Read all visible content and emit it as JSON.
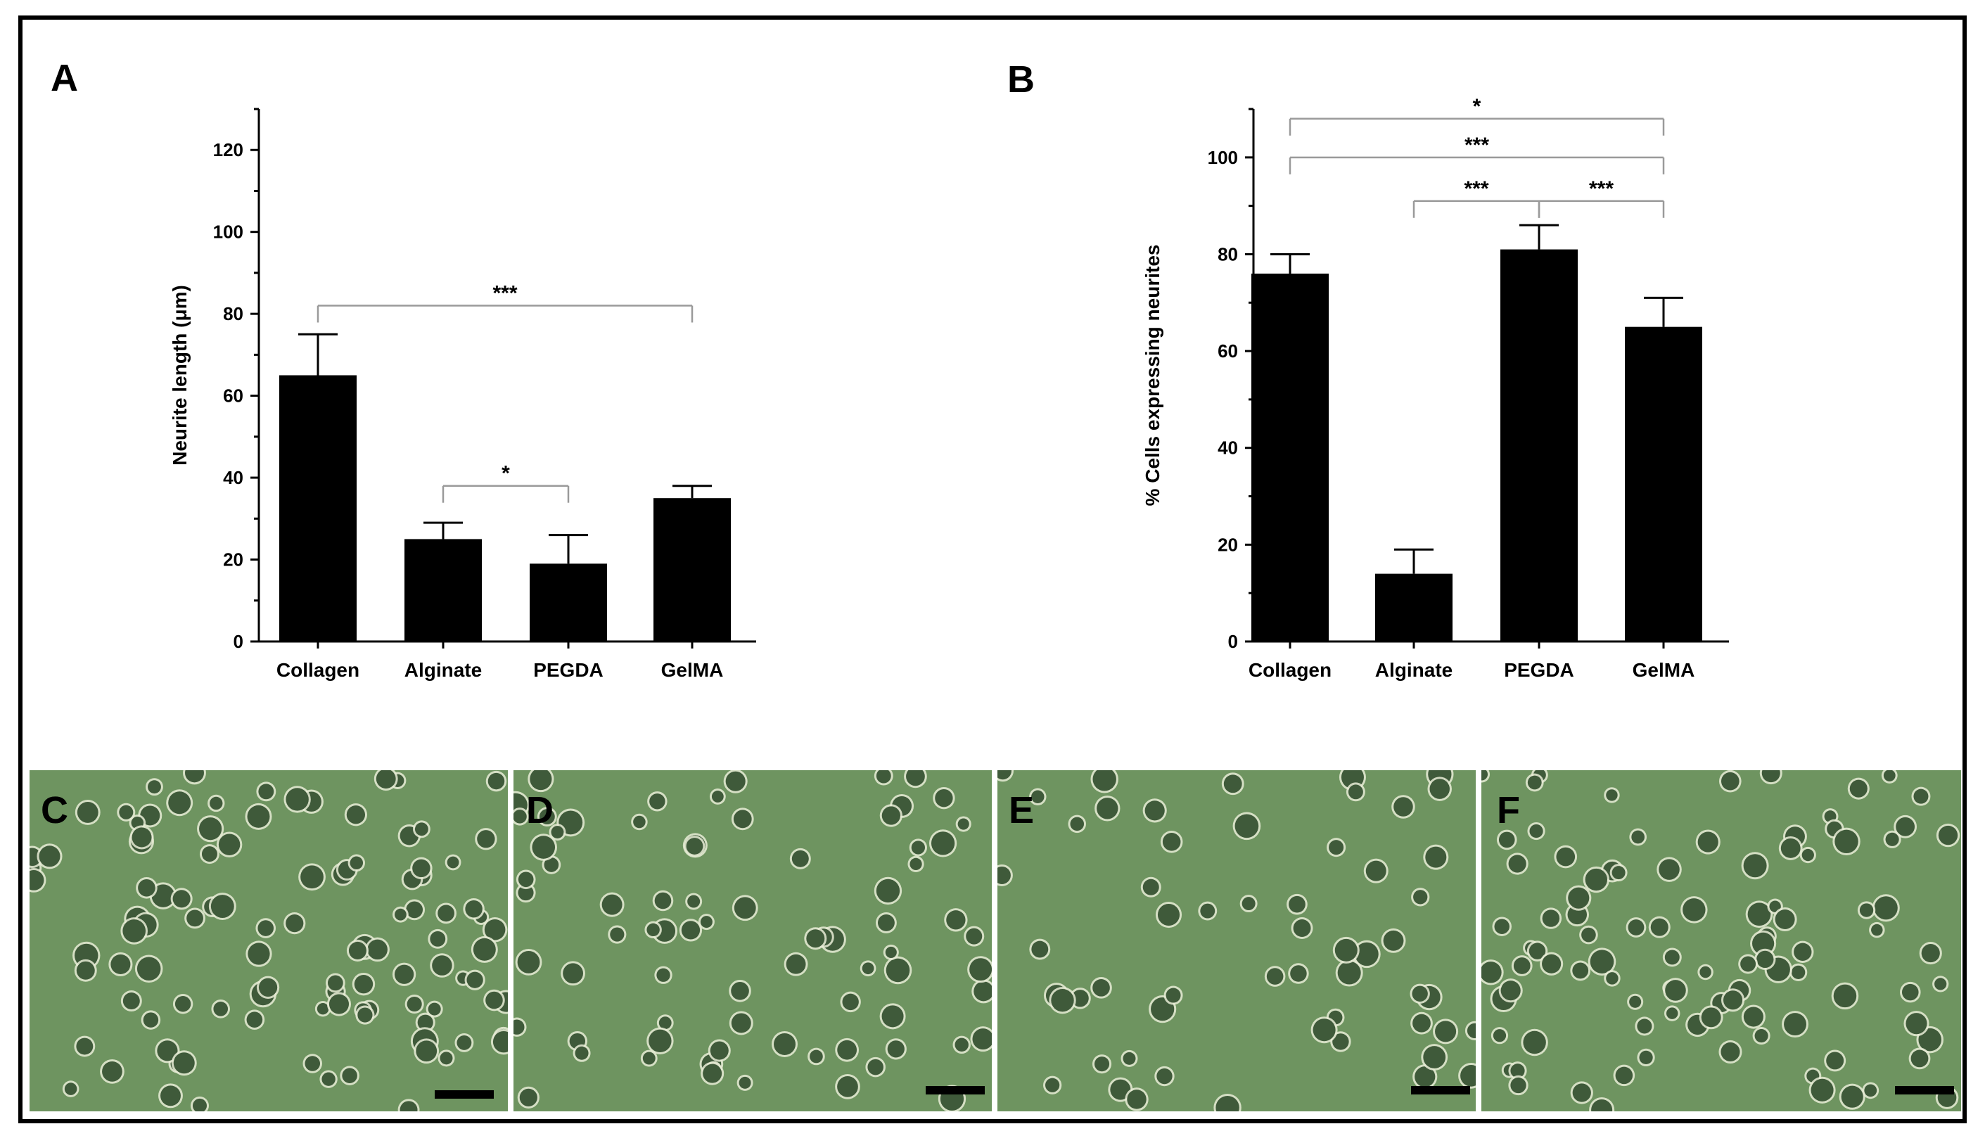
{
  "colors": {
    "bar": "#000000",
    "axis": "#000000",
    "bracket": "#9a9a9a",
    "micrograph": "#6e9460",
    "cell": "#3f5a3a",
    "halo": "#e8ecd6"
  },
  "chart_data": [
    {
      "panel": "A",
      "type": "bar",
      "categories": [
        "Collagen",
        "Alginate",
        "PEGDA",
        "GelMA"
      ],
      "values": [
        65,
        25,
        19,
        35
      ],
      "errors": [
        10,
        4,
        7,
        3
      ],
      "ylabel": "Neurite length (μm)",
      "ylim": [
        0,
        130
      ],
      "yticks": [
        0,
        20,
        40,
        60,
        80,
        100,
        120
      ],
      "grid": false,
      "significance": [
        {
          "from": 0,
          "to": 3,
          "label": "***",
          "y": 82
        },
        {
          "from": 1,
          "to": 2,
          "label": "*",
          "y": 38
        }
      ]
    },
    {
      "panel": "B",
      "type": "bar",
      "categories": [
        "Collagen",
        "Alginate",
        "PEGDA",
        "GelMA"
      ],
      "values": [
        76,
        14,
        81,
        65
      ],
      "errors": [
        4,
        5,
        5,
        6
      ],
      "ylabel": "% Cells expressing neurites",
      "ylim": [
        0,
        110
      ],
      "yticks": [
        0,
        20,
        40,
        60,
        80,
        100
      ],
      "grid": false,
      "significance": [
        {
          "from": 0,
          "to": 3,
          "label": "*",
          "y": 108
        },
        {
          "from": 0,
          "to": 3,
          "label": "***",
          "y": 100
        },
        {
          "from": 1,
          "to": 2,
          "label": "***",
          "y": 91
        },
        {
          "from": 2,
          "to": 3,
          "label": "***",
          "y": 91
        }
      ]
    }
  ],
  "panels": {
    "a_letter": "A",
    "b_letter": "B",
    "micrographs": [
      {
        "letter": "C",
        "density": 0.75
      },
      {
        "letter": "D",
        "density": 0.55
      },
      {
        "letter": "E",
        "density": 0.4
      },
      {
        "letter": "F",
        "density": 0.7
      }
    ]
  }
}
